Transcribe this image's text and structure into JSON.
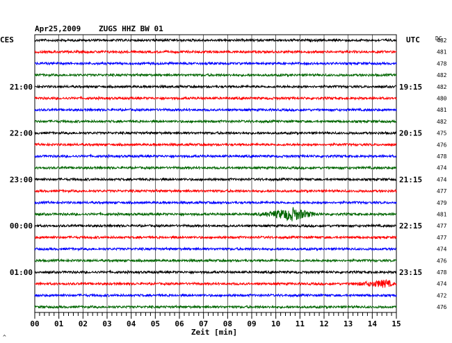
{
  "header": {
    "date": "Apr25,2009",
    "station": "ZUGS HHZ BW 01",
    "left_tz": "CES",
    "right_tz": "UTC",
    "dc_label": "DC",
    "footer_mark": "^"
  },
  "chart_data": {
    "type": "line",
    "xlabel": "Zeit [min]",
    "xlim": [
      0,
      15
    ],
    "x_ticks": [
      "00",
      "01",
      "02",
      "03",
      "04",
      "05",
      "06",
      "07",
      "08",
      "09",
      "10",
      "11",
      "12",
      "13",
      "14",
      "15"
    ],
    "left_time_labels": [
      {
        "trace": 4,
        "label": "21:00"
      },
      {
        "trace": 8,
        "label": "22:00"
      },
      {
        "trace": 12,
        "label": "23:00"
      },
      {
        "trace": 16,
        "label": "00:00"
      },
      {
        "trace": 20,
        "label": "01:00"
      }
    ],
    "right_time_labels": [
      {
        "trace": 4,
        "label": "19:15"
      },
      {
        "trace": 8,
        "label": "20:15"
      },
      {
        "trace": 12,
        "label": "21:15"
      },
      {
        "trace": 16,
        "label": "22:15"
      },
      {
        "trace": 20,
        "label": "23:15"
      }
    ],
    "colors": [
      "#000000",
      "#ff0000",
      "#0000ff",
      "#006600"
    ],
    "dc_values": [
      "482",
      "481",
      "478",
      "482",
      "482",
      "480",
      "481",
      "482",
      "475",
      "476",
      "478",
      "474",
      "474",
      "477",
      "479",
      "481",
      "477",
      "477",
      "474",
      "476",
      "478",
      "474",
      "472",
      "476"
    ],
    "events": [
      {
        "trace": 15,
        "start_min": 9.0,
        "peak_min": 10.7,
        "end_min": 12.0,
        "amplitude": 9
      },
      {
        "trace": 21,
        "start_min": 12.8,
        "peak_min": 14.6,
        "end_min": 15.0,
        "amplitude": 5
      }
    ]
  }
}
